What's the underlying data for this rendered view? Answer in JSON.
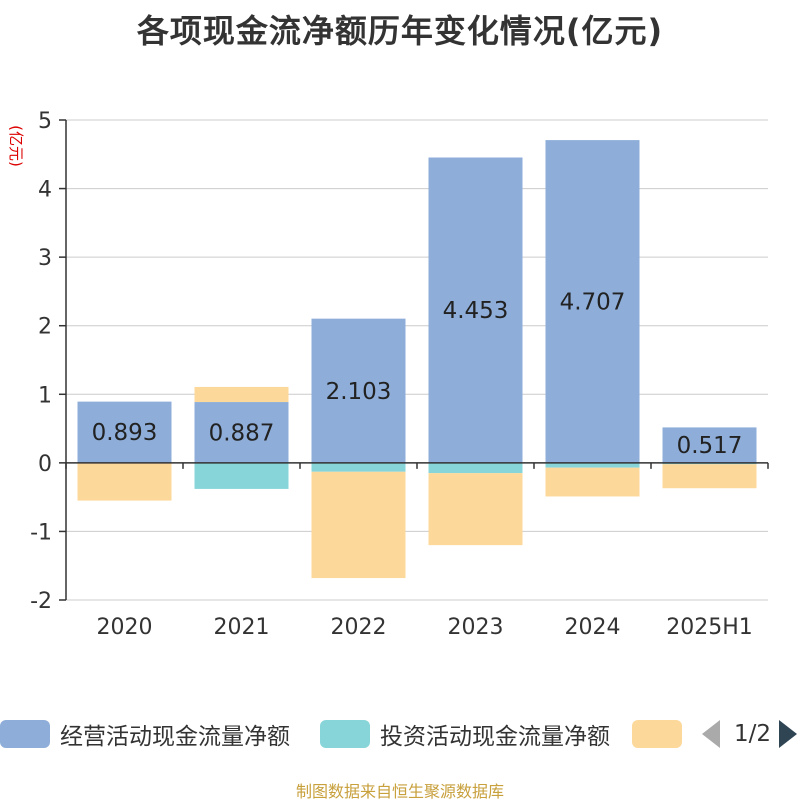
{
  "title": "各项现金流净额历年变化情况(亿元)",
  "source": "制图数据来自恒生聚源数据库",
  "pager": {
    "text": "1/2"
  },
  "colors": {
    "operating": "#8eaed9",
    "investing": "#87d5d9",
    "financing": "#fcd89a"
  },
  "chart_data": {
    "type": "bar",
    "stacked": true,
    "title": "各项现金流净额历年变化情况(亿元)",
    "ylabel": "(亿元)",
    "xlabel": "",
    "ylim": [
      -2,
      5
    ],
    "yticks": [
      -2,
      -1,
      0,
      1,
      2,
      3,
      4,
      5
    ],
    "ytick_labels": [
      "-2",
      "-1",
      "0",
      "1",
      "2",
      "3",
      "4",
      "5"
    ],
    "grid": true,
    "legend_position": "bottom",
    "categories": [
      "2020",
      "2021",
      "2022",
      "2023",
      "2024",
      "2025H1"
    ],
    "series": [
      {
        "name": "经营活动现金流量净额",
        "values": [
          0.893,
          0.887,
          2.103,
          4.453,
          4.707,
          0.517
        ],
        "labels": [
          "0.893",
          "0.887",
          "2.103",
          "4.453",
          "4.707",
          "0.517"
        ]
      },
      {
        "name": "投资活动现金流量净额",
        "values": [
          0,
          -0.38,
          -0.13,
          -0.15,
          -0.07,
          -0.02
        ]
      },
      {
        "name": "",
        "values": [
          -0.55,
          0.22,
          -1.55,
          -1.05,
          -0.42,
          -0.35
        ]
      }
    ]
  }
}
